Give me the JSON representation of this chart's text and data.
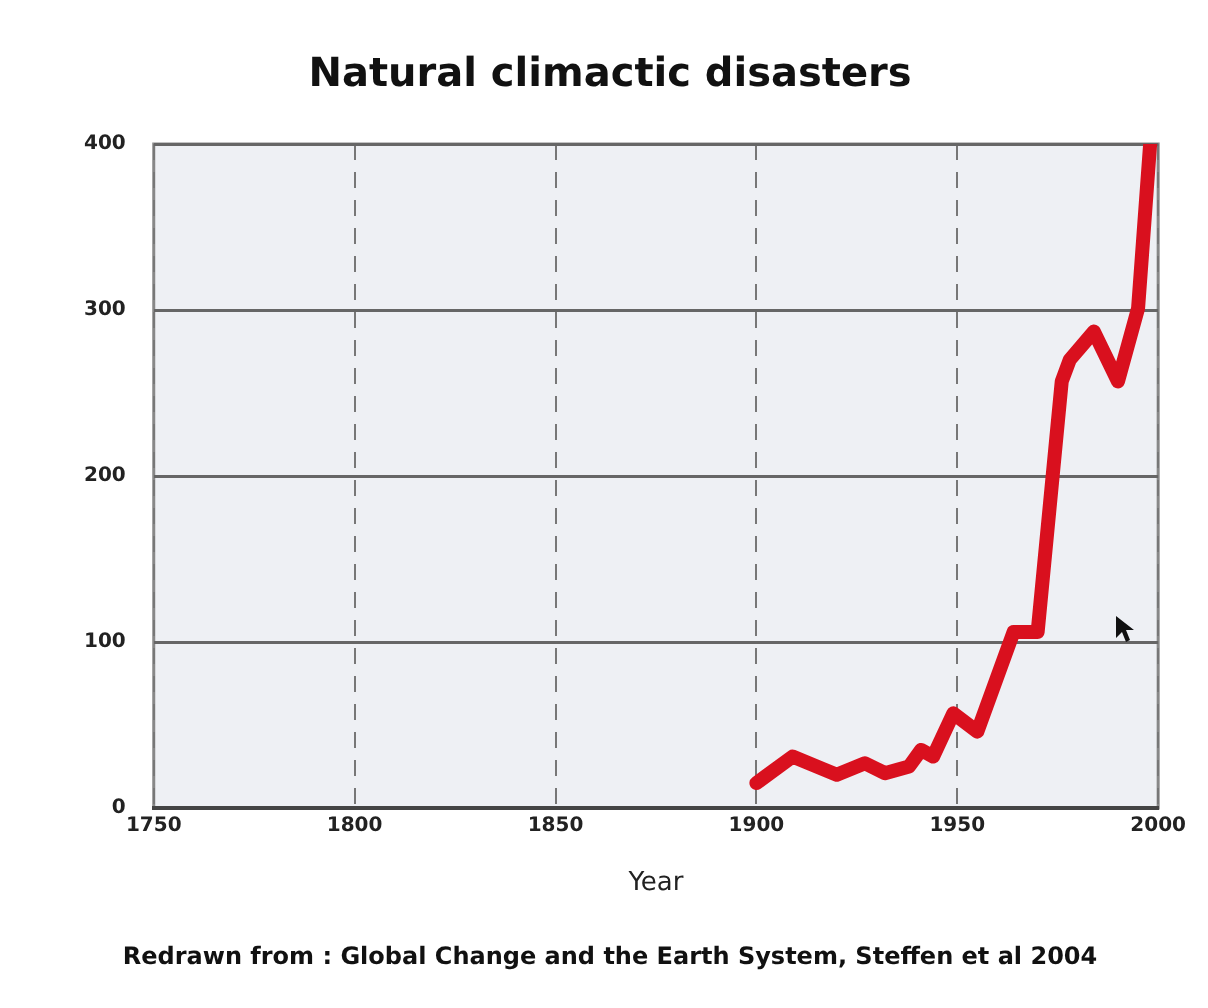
{
  "chart_data": {
    "type": "line",
    "title": "Natural climactic disasters",
    "xlabel": "Year",
    "annotations": [
      "Redrawn from : Global Change and the Earth System, Steffen et al 2004"
    ],
    "x": [
      1900,
      1909,
      1920,
      1927,
      1932,
      1938,
      1941,
      1944,
      1949,
      1955,
      1964,
      1970,
      1976,
      1978,
      1984,
      1990,
      1995,
      1998
    ],
    "series": [
      {
        "color": "#d9101e",
        "values": [
          15,
          31,
          20,
          27,
          21,
          25,
          35,
          31,
          57,
          46,
          106,
          106,
          257,
          270,
          287,
          257,
          301,
          400
        ]
      }
    ],
    "xlim": [
      1750,
      2000
    ],
    "xticks": [
      1750,
      1800,
      1850,
      1900,
      1950,
      2000
    ],
    "ylim": [
      0,
      400
    ],
    "yticks": [
      0,
      100,
      200,
      300,
      400
    ],
    "grid": true,
    "legend": false,
    "marker": "none",
    "line_style": "solid"
  }
}
